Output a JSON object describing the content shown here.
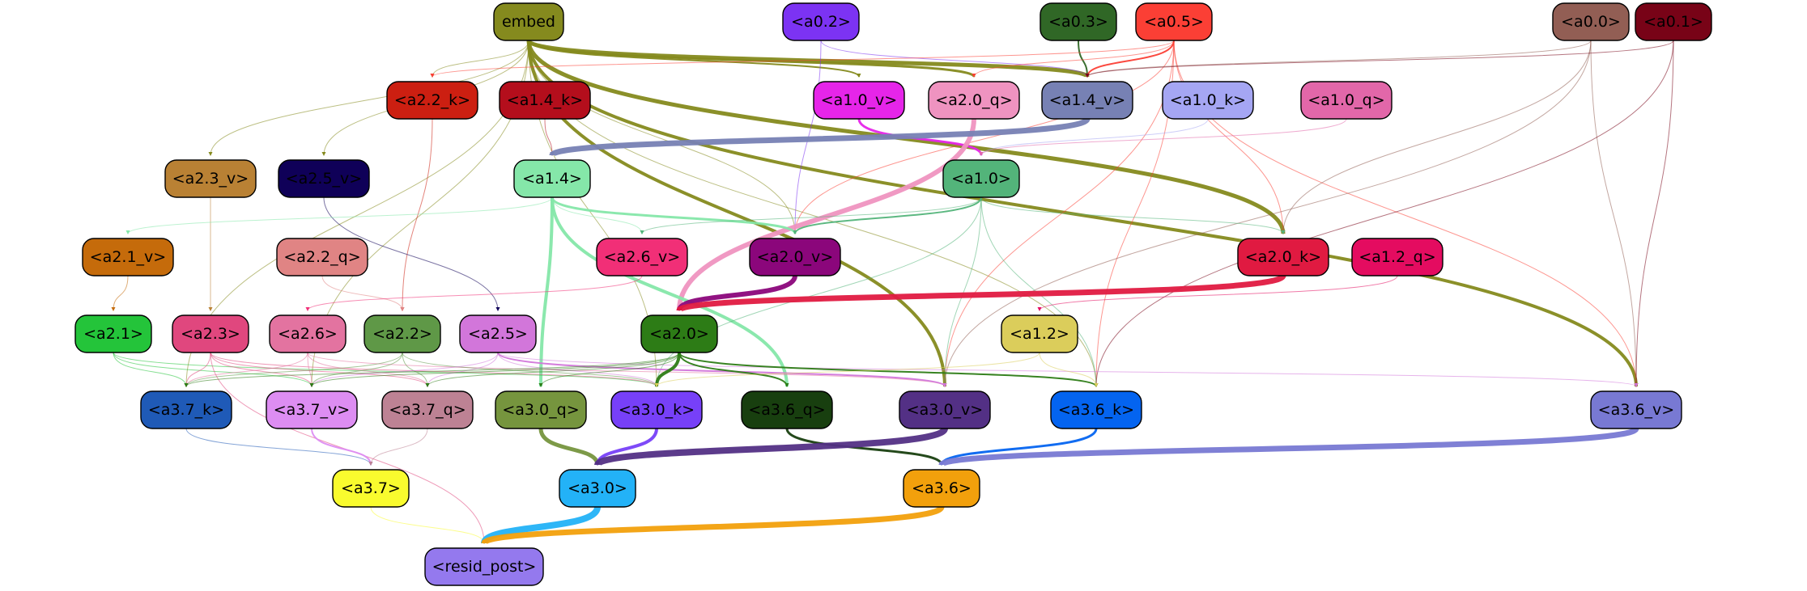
{
  "nodes": [
    {
      "id": "embed",
      "label": "embed",
      "fill": "#858a1e",
      "text": "#000000"
    },
    {
      "id": "a0_2",
      "label": "<a0.2>",
      "fill": "#7c33f3",
      "text": "#000000"
    },
    {
      "id": "a0_3",
      "label": "<a0.3>",
      "fill": "#306726",
      "text": "#000000"
    },
    {
      "id": "a0_5",
      "label": "<a0.5>",
      "fill": "#fb3f35",
      "text": "#000000"
    },
    {
      "id": "a0_0",
      "label": "<a0.0>",
      "fill": "#925e54",
      "text": "#000000"
    },
    {
      "id": "a0_1",
      "label": "<a0.1>",
      "fill": "#780317",
      "text": "#000000"
    },
    {
      "id": "a2_2_k",
      "label": "<a2.2_k>",
      "fill": "#cc1f11",
      "text": "#000000"
    },
    {
      "id": "a1_4_k",
      "label": "<a1.4_k>",
      "fill": "#b40e1c",
      "text": "#000000"
    },
    {
      "id": "a1_0_v",
      "label": "<a1.0_v>",
      "fill": "#e625e9",
      "text": "#000000"
    },
    {
      "id": "a2_0_q",
      "label": "<a2.0_q>",
      "fill": "#ef93c0",
      "text": "#000000"
    },
    {
      "id": "a1_4_v",
      "label": "<a1.4_v>",
      "fill": "#7781b4",
      "text": "#000000"
    },
    {
      "id": "a1_0_k",
      "label": "<a1.0_k>",
      "fill": "#a5a6f3",
      "text": "#000000"
    },
    {
      "id": "a1_0_q",
      "label": "<a1.0_q>",
      "fill": "#e267a9",
      "text": "#000000"
    },
    {
      "id": "a2_3_v",
      "label": "<a2.3_v>",
      "fill": "#b98134",
      "text": "#000000"
    },
    {
      "id": "a2_5_v",
      "label": "<a2.5_v>",
      "fill": "#0f0058",
      "text": "#000000"
    },
    {
      "id": "a1_4",
      "label": "<a1.4>",
      "fill": "#85e7a9",
      "text": "#000000"
    },
    {
      "id": "a1_0",
      "label": "<a1.0>",
      "fill": "#53b47a",
      "text": "#000000"
    },
    {
      "id": "a2_1_v",
      "label": "<a2.1_v>",
      "fill": "#c56b0b",
      "text": "#000000"
    },
    {
      "id": "a2_2_q",
      "label": "<a2.2_q>",
      "fill": "#e08484",
      "text": "#000000"
    },
    {
      "id": "a2_6_v",
      "label": "<a2.6_v>",
      "fill": "#f12f77",
      "text": "#000000"
    },
    {
      "id": "a2_0_v",
      "label": "<a2.0_v>",
      "fill": "#8b067b",
      "text": "#000000"
    },
    {
      "id": "a2_0_k",
      "label": "<a2.0_k>",
      "fill": "#e01a41",
      "text": "#000000"
    },
    {
      "id": "a1_2_q",
      "label": "<a1.2_q>",
      "fill": "#e40c60",
      "text": "#000000"
    },
    {
      "id": "a2_1",
      "label": "<a2.1>",
      "fill": "#24c43a",
      "text": "#000000"
    },
    {
      "id": "a2_3",
      "label": "<a2.3>",
      "fill": "#e0477e",
      "text": "#000000"
    },
    {
      "id": "a2_6",
      "label": "<a2.6>",
      "fill": "#e373a0",
      "text": "#000000"
    },
    {
      "id": "a2_2",
      "label": "<a2.2>",
      "fill": "#5f9847",
      "text": "#000000"
    },
    {
      "id": "a2_5",
      "label": "<a2.5>",
      "fill": "#d276da",
      "text": "#000000"
    },
    {
      "id": "a2_0",
      "label": "<a2.0>",
      "fill": "#2d7c16",
      "text": "#000000"
    },
    {
      "id": "a1_2",
      "label": "<a1.2>",
      "fill": "#dbcd5b",
      "text": "#000000"
    },
    {
      "id": "a3_7_k",
      "label": "<a3.7_k>",
      "fill": "#1f5ab7",
      "text": "#000000"
    },
    {
      "id": "a3_7_v",
      "label": "<a3.7_v>",
      "fill": "#dd8df2",
      "text": "#000000"
    },
    {
      "id": "a3_7_q",
      "label": "<a3.7_q>",
      "fill": "#bd8294",
      "text": "#000000"
    },
    {
      "id": "a3_0_q",
      "label": "<a3.0_q>",
      "fill": "#76953e",
      "text": "#000000"
    },
    {
      "id": "a3_0_k",
      "label": "<a3.0_k>",
      "fill": "#7740f8",
      "text": "#000000"
    },
    {
      "id": "a3_6_q",
      "label": "<a3.6_q>",
      "fill": "#183f0f",
      "text": "#000000"
    },
    {
      "id": "a3_0_v",
      "label": "<a3.0_v>",
      "fill": "#533085",
      "text": "#000000"
    },
    {
      "id": "a3_6_k",
      "label": "<a3.6_k>",
      "fill": "#0464f0",
      "text": "#000000"
    },
    {
      "id": "a3_6_v",
      "label": "<a3.6_v>",
      "fill": "#7879d3",
      "text": "#000000"
    },
    {
      "id": "a3_7",
      "label": "<a3.7>",
      "fill": "#f9fb2e",
      "text": "#000000"
    },
    {
      "id": "a3_0",
      "label": "<a3.0>",
      "fill": "#23b2f7",
      "text": "#000000"
    },
    {
      "id": "a3_6",
      "label": "<a3.6>",
      "fill": "#f2a00c",
      "text": "#000000"
    },
    {
      "id": "resid_post",
      "label": "<resid_post>",
      "fill": "#9479ee",
      "text": "#000000"
    }
  ],
  "edges": [
    {
      "from": "embed",
      "to": "a1_4_v",
      "color": "#858a1e",
      "weight": 5
    },
    {
      "from": "embed",
      "to": "a2_0_k",
      "color": "#858a1e",
      "weight": 5
    },
    {
      "from": "embed",
      "to": "a3_6_v",
      "color": "#858a1e",
      "weight": 4
    },
    {
      "from": "embed",
      "to": "a3_0_v",
      "color": "#858a1e",
      "weight": 4
    },
    {
      "from": "embed",
      "to": "a2_0_q",
      "color": "#858a1e",
      "weight": 3
    },
    {
      "from": "embed",
      "to": "a1_0_v",
      "color": "#858a1e",
      "weight": 2
    },
    {
      "from": "embed",
      "to": "a2_2_k",
      "color": "#858a1e",
      "weight": 1
    },
    {
      "from": "embed",
      "to": "a2_3_v",
      "color": "#858a1e",
      "weight": 1
    },
    {
      "from": "embed",
      "to": "a2_5_v",
      "color": "#858a1e",
      "weight": 1
    },
    {
      "from": "embed",
      "to": "a2_0_v",
      "color": "#858a1e",
      "weight": 1
    },
    {
      "from": "embed",
      "to": "a3_7_k",
      "color": "#858a1e",
      "weight": 1
    },
    {
      "from": "embed",
      "to": "a3_7_v",
      "color": "#858a1e",
      "weight": 1
    },
    {
      "from": "embed",
      "to": "a3_0_k",
      "color": "#858a1e",
      "weight": 1
    },
    {
      "from": "embed",
      "to": "a3_6_k",
      "color": "#858a1e",
      "weight": 1
    },
    {
      "from": "a0_2",
      "to": "a2_0_v",
      "color": "#7c33f3",
      "weight": 1
    },
    {
      "from": "a0_2",
      "to": "a1_4_v",
      "color": "#7c33f3",
      "weight": 1
    },
    {
      "from": "a0_3",
      "to": "a1_4_v",
      "color": "#306726",
      "weight": 2
    },
    {
      "from": "a0_5",
      "to": "a1_4_v",
      "color": "#fb3f35",
      "weight": 2
    },
    {
      "from": "a0_5",
      "to": "a2_0_k",
      "color": "#fb3f35",
      "weight": 1
    },
    {
      "from": "a0_5",
      "to": "a2_2_k",
      "color": "#fb3f35",
      "weight": 1
    },
    {
      "from": "a0_5",
      "to": "a2_0_q",
      "color": "#fb3f35",
      "weight": 1
    },
    {
      "from": "a0_5",
      "to": "a2_0_v",
      "color": "#fb3f35",
      "weight": 1
    },
    {
      "from": "a0_5",
      "to": "a3_6_k",
      "color": "#fb3f35",
      "weight": 1
    },
    {
      "from": "a0_5",
      "to": "a3_6_v",
      "color": "#fb3f35",
      "weight": 1
    },
    {
      "from": "a0_5",
      "to": "a3_0_v",
      "color": "#fb3f35",
      "weight": 1
    },
    {
      "from": "a0_0",
      "to": "a1_4_v",
      "color": "#925e54",
      "weight": 1
    },
    {
      "from": "a0_0",
      "to": "a2_0_k",
      "color": "#925e54",
      "weight": 1
    },
    {
      "from": "a0_0",
      "to": "a3_6_v",
      "color": "#925e54",
      "weight": 1
    },
    {
      "from": "a0_0",
      "to": "a3_0_v",
      "color": "#925e54",
      "weight": 1
    },
    {
      "from": "a0_1",
      "to": "a1_4_v",
      "color": "#780317",
      "weight": 1
    },
    {
      "from": "a0_1",
      "to": "a3_6_k",
      "color": "#780317",
      "weight": 1
    },
    {
      "from": "a0_1",
      "to": "a3_6_v",
      "color": "#780317",
      "weight": 1
    },
    {
      "from": "a2_2_k",
      "to": "a2_2",
      "color": "#cc1f11",
      "weight": 1
    },
    {
      "from": "a1_4_k",
      "to": "a1_4",
      "color": "#b40e1c",
      "weight": 1
    },
    {
      "from": "a1_0_v",
      "to": "a1_0",
      "color": "#e625e9",
      "weight": 3
    },
    {
      "from": "a2_0_q",
      "to": "a2_0",
      "color": "#ef93c0",
      "weight": 6
    },
    {
      "from": "a1_4_v",
      "to": "a1_4",
      "color": "#7781b4",
      "weight": 7
    },
    {
      "from": "a1_0_k",
      "to": "a1_0",
      "color": "#a5a6f3",
      "weight": 1
    },
    {
      "from": "a1_0_q",
      "to": "a1_0",
      "color": "#e267a9",
      "weight": 1
    },
    {
      "from": "a2_3_v",
      "to": "a2_3",
      "color": "#b98134",
      "weight": 1
    },
    {
      "from": "a2_5_v",
      "to": "a2_5",
      "color": "#0f0058",
      "weight": 1
    },
    {
      "from": "a1_4",
      "to": "a3_0_q",
      "color": "#85e7a9",
      "weight": 4
    },
    {
      "from": "a1_4",
      "to": "a3_6_q",
      "color": "#85e7a9",
      "weight": 4
    },
    {
      "from": "a1_4",
      "to": "a2_0_v",
      "color": "#85e7a9",
      "weight": 3
    },
    {
      "from": "a1_4",
      "to": "a2_1_v",
      "color": "#85e7a9",
      "weight": 1
    },
    {
      "from": "a1_4",
      "to": "a2_6_v",
      "color": "#85e7a9",
      "weight": 1
    },
    {
      "from": "a1_0",
      "to": "a2_0_v",
      "color": "#53b47a",
      "weight": 2
    },
    {
      "from": "a1_0",
      "to": "a2_6_v",
      "color": "#53b47a",
      "weight": 1
    },
    {
      "from": "a1_0",
      "to": "a2_0_k",
      "color": "#53b47a",
      "weight": 1
    },
    {
      "from": "a1_0",
      "to": "a3_0_v",
      "color": "#53b47a",
      "weight": 1
    },
    {
      "from": "a1_0",
      "to": "a3_6_k",
      "color": "#53b47a",
      "weight": 1
    },
    {
      "from": "a1_0",
      "to": "a3_0_k",
      "color": "#53b47a",
      "weight": 1
    },
    {
      "from": "a2_1_v",
      "to": "a2_1",
      "color": "#c56b0b",
      "weight": 1
    },
    {
      "from": "a2_2_q",
      "to": "a2_2",
      "color": "#e08484",
      "weight": 1
    },
    {
      "from": "a2_6_v",
      "to": "a2_6",
      "color": "#f12f77",
      "weight": 1
    },
    {
      "from": "a2_0_v",
      "to": "a2_0",
      "color": "#8b067b",
      "weight": 6
    },
    {
      "from": "a2_0_k",
      "to": "a2_0",
      "color": "#e01a41",
      "weight": 7
    },
    {
      "from": "a1_2_q",
      "to": "a1_2",
      "color": "#e40c60",
      "weight": 1
    },
    {
      "from": "a2_1",
      "to": "a3_7_k",
      "color": "#24c43a",
      "weight": 1
    },
    {
      "from": "a2_1",
      "to": "a3_7_v",
      "color": "#24c43a",
      "weight": 1
    },
    {
      "from": "a2_1",
      "to": "a3_0_k",
      "color": "#24c43a",
      "weight": 1
    },
    {
      "from": "a2_3",
      "to": "a3_7_k",
      "color": "#e0477e",
      "weight": 1
    },
    {
      "from": "a2_3",
      "to": "a3_7_v",
      "color": "#e0477e",
      "weight": 1
    },
    {
      "from": "a2_3",
      "to": "a3_7_q",
      "color": "#e0477e",
      "weight": 1
    },
    {
      "from": "a2_3",
      "to": "a3_0_k",
      "color": "#e0477e",
      "weight": 1
    },
    {
      "from": "a2_3",
      "to": "resid_post",
      "color": "#e0477e",
      "weight": 1
    },
    {
      "from": "a2_6",
      "to": "a3_7_k",
      "color": "#e373a0",
      "weight": 1
    },
    {
      "from": "a2_6",
      "to": "a3_7_v",
      "color": "#e373a0",
      "weight": 1
    },
    {
      "from": "a2_6",
      "to": "a3_7_q",
      "color": "#e373a0",
      "weight": 1
    },
    {
      "from": "a2_6",
      "to": "a3_0_v",
      "color": "#e373a0",
      "weight": 1
    },
    {
      "from": "a2_2",
      "to": "a3_7_k",
      "color": "#5f9847",
      "weight": 1
    },
    {
      "from": "a2_2",
      "to": "a3_7_v",
      "color": "#5f9847",
      "weight": 1
    },
    {
      "from": "a2_2",
      "to": "a3_7_q",
      "color": "#5f9847",
      "weight": 1
    },
    {
      "from": "a2_2",
      "to": "a3_0_k",
      "color": "#5f9847",
      "weight": 1
    },
    {
      "from": "a2_5",
      "to": "a3_7_v",
      "color": "#d276da",
      "weight": 1
    },
    {
      "from": "a2_5",
      "to": "a3_7_q",
      "color": "#d276da",
      "weight": 1
    },
    {
      "from": "a2_5",
      "to": "a3_0_k",
      "color": "#d276da",
      "weight": 1
    },
    {
      "from": "a2_5",
      "to": "a3_0_v",
      "color": "#d276da",
      "weight": 2
    },
    {
      "from": "a2_5",
      "to": "a3_6_v",
      "color": "#d276da",
      "weight": 1
    },
    {
      "from": "a2_0",
      "to": "a3_0_k",
      "color": "#2d7c16",
      "weight": 4
    },
    {
      "from": "a2_0",
      "to": "a3_6_k",
      "color": "#2d7c16",
      "weight": 2
    },
    {
      "from": "a2_0",
      "to": "a3_6_q",
      "color": "#2d7c16",
      "weight": 2
    },
    {
      "from": "a2_0",
      "to": "a3_0_q",
      "color": "#2d7c16",
      "weight": 1
    },
    {
      "from": "a2_0",
      "to": "a3_7_k",
      "color": "#2d7c16",
      "weight": 1
    },
    {
      "from": "a2_0",
      "to": "a3_7_v",
      "color": "#2d7c16",
      "weight": 1
    },
    {
      "from": "a2_0",
      "to": "a3_7_q",
      "color": "#2d7c16",
      "weight": 1
    },
    {
      "from": "a1_2",
      "to": "a3_6_k",
      "color": "#dbcd5b",
      "weight": 1
    },
    {
      "from": "a1_2",
      "to": "a3_0_k",
      "color": "#dbcd5b",
      "weight": 1
    },
    {
      "from": "a3_7_k",
      "to": "a3_7",
      "color": "#1f5ab7",
      "weight": 1
    },
    {
      "from": "a3_7_v",
      "to": "a3_7",
      "color": "#dd8df2",
      "weight": 2
    },
    {
      "from": "a3_7_q",
      "to": "a3_7",
      "color": "#bd8294",
      "weight": 1
    },
    {
      "from": "a3_0_q",
      "to": "a3_0",
      "color": "#76953e",
      "weight": 5
    },
    {
      "from": "a3_0_k",
      "to": "a3_0",
      "color": "#7740f8",
      "weight": 4
    },
    {
      "from": "a3_6_q",
      "to": "a3_6",
      "color": "#183f0f",
      "weight": 3
    },
    {
      "from": "a3_0_v",
      "to": "a3_0",
      "color": "#533085",
      "weight": 8
    },
    {
      "from": "a3_6_k",
      "to": "a3_6",
      "color": "#0464f0",
      "weight": 3
    },
    {
      "from": "a3_6_v",
      "to": "a3_6",
      "color": "#7879d3",
      "weight": 7
    },
    {
      "from": "a3_7",
      "to": "resid_post",
      "color": "#f9fb2e",
      "weight": 1
    },
    {
      "from": "a3_0",
      "to": "resid_post",
      "color": "#23b2f7",
      "weight": 8
    },
    {
      "from": "a3_6",
      "to": "resid_post",
      "color": "#f2a00c",
      "weight": 7
    }
  ]
}
